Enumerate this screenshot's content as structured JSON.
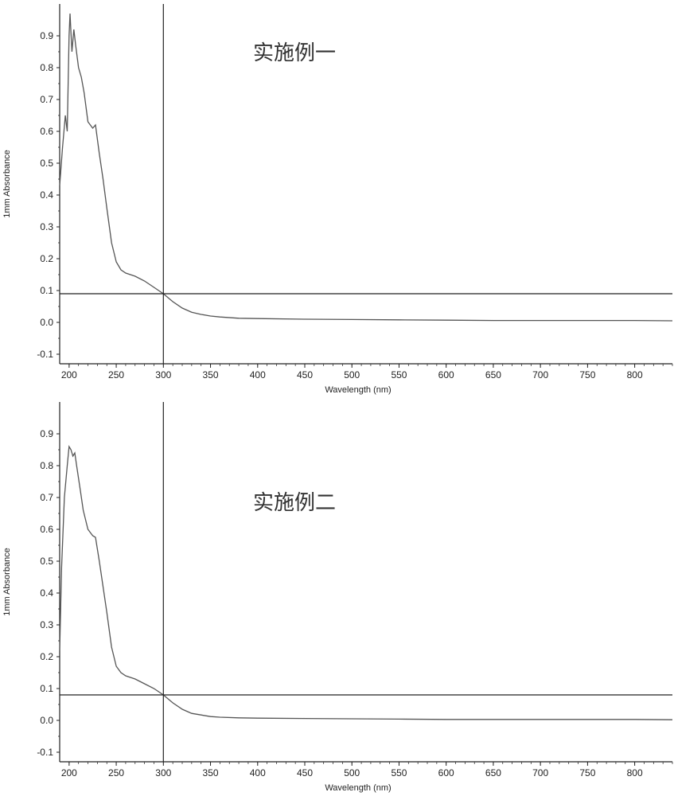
{
  "chart_data": [
    {
      "type": "line",
      "annotation": "实施例一",
      "xlabel": "Wavelength (nm)",
      "ylabel": "1mm Absorbance",
      "xlim": [
        190,
        840
      ],
      "ylim": [
        -0.13,
        1.0
      ],
      "xticks": [
        200,
        250,
        300,
        350,
        400,
        450,
        500,
        550,
        600,
        650,
        700,
        750,
        800
      ],
      "yticks": [
        -0.1,
        0.0,
        0.1,
        0.2,
        0.3,
        0.4,
        0.5,
        0.6,
        0.7,
        0.8,
        0.9
      ],
      "ytick_labels": [
        "-0.1",
        "0.0",
        "0.1",
        "0.2",
        "0.3",
        "0.4",
        "0.5",
        "0.6",
        "0.7",
        "0.8",
        "0.9"
      ],
      "crosshair": {
        "x": 300,
        "y": 0.09
      },
      "grid": false,
      "series": [
        {
          "color": "#555555",
          "x": [
            190,
            193,
            196,
            198,
            200,
            201,
            203,
            205,
            207,
            210,
            213,
            216,
            220,
            225,
            228,
            232,
            236,
            240,
            245,
            250,
            255,
            260,
            270,
            280,
            290,
            300,
            310,
            320,
            330,
            340,
            350,
            360,
            380,
            400,
            450,
            500,
            550,
            600,
            650,
            700,
            750,
            800,
            840
          ],
          "y": [
            0.43,
            0.55,
            0.65,
            0.6,
            0.9,
            0.97,
            0.85,
            0.92,
            0.87,
            0.8,
            0.77,
            0.72,
            0.63,
            0.61,
            0.62,
            0.53,
            0.45,
            0.36,
            0.25,
            0.19,
            0.165,
            0.155,
            0.145,
            0.13,
            0.11,
            0.09,
            0.065,
            0.045,
            0.032,
            0.025,
            0.02,
            0.017,
            0.013,
            0.012,
            0.01,
            0.009,
            0.008,
            0.007,
            0.006,
            0.006,
            0.006,
            0.006,
            0.005
          ]
        }
      ]
    },
    {
      "type": "line",
      "annotation": "实施例二",
      "xlabel": "Wavelength (nm)",
      "ylabel": "1mm Absorbance",
      "xlim": [
        190,
        840
      ],
      "ylim": [
        -0.13,
        1.0
      ],
      "xticks": [
        200,
        250,
        300,
        350,
        400,
        450,
        500,
        550,
        600,
        650,
        700,
        750,
        800
      ],
      "yticks": [
        -0.1,
        0.0,
        0.1,
        0.2,
        0.3,
        0.4,
        0.5,
        0.6,
        0.7,
        0.8,
        0.9
      ],
      "ytick_labels": [
        "-0.1",
        "0.0",
        "0.1",
        "0.2",
        "0.3",
        "0.4",
        "0.5",
        "0.6",
        "0.7",
        "0.8",
        "0.9"
      ],
      "crosshair": {
        "x": 300,
        "y": 0.08
      },
      "grid": false,
      "series": [
        {
          "color": "#555555",
          "x": [
            190,
            192,
            195,
            198,
            200,
            202,
            204,
            206,
            208,
            212,
            215,
            220,
            225,
            228,
            232,
            236,
            240,
            245,
            250,
            255,
            260,
            270,
            280,
            290,
            300,
            310,
            320,
            330,
            340,
            350,
            360,
            380,
            400,
            450,
            500,
            550,
            600,
            650,
            700,
            750,
            800,
            840
          ],
          "y": [
            0.22,
            0.48,
            0.7,
            0.8,
            0.86,
            0.85,
            0.83,
            0.84,
            0.8,
            0.72,
            0.66,
            0.6,
            0.58,
            0.575,
            0.5,
            0.42,
            0.34,
            0.23,
            0.17,
            0.15,
            0.14,
            0.13,
            0.115,
            0.1,
            0.08,
            0.055,
            0.035,
            0.022,
            0.017,
            0.012,
            0.01,
            0.008,
            0.007,
            0.006,
            0.005,
            0.004,
            0.003,
            0.003,
            0.003,
            0.003,
            0.003,
            0.002
          ]
        }
      ]
    }
  ]
}
